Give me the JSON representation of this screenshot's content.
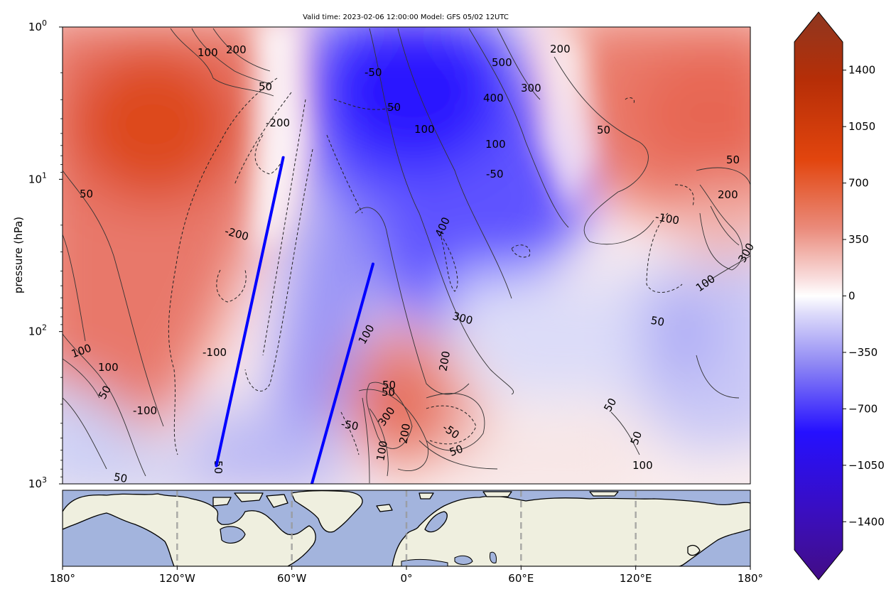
{
  "chart_data": [
    {
      "type": "heatmap",
      "title": "Valid time: 2023-02-06 12:00:00 Model: GFS 05/02 12UTC",
      "xlabel": "",
      "ylabel": "pressure (hPa)",
      "x_range": [
        "180°",
        "180°"
      ],
      "ylim": [
        1000,
        1
      ],
      "y_scale": "log",
      "y_ticks": [
        {
          "base": "10",
          "exp": "0"
        },
        {
          "base": "10",
          "exp": "1"
        },
        {
          "base": "10",
          "exp": "2"
        },
        {
          "base": "10",
          "exp": "3"
        }
      ],
      "grid": false,
      "contour_labels": [
        "100",
        "200",
        "50",
        "-200",
        "500",
        "-50",
        "50",
        "200",
        "400",
        "300",
        "100",
        "50",
        "100",
        "-50",
        "50",
        "50",
        "200",
        "-100",
        "300",
        "100",
        "50",
        "-200",
        "400",
        "300",
        "-100",
        "-50",
        "100",
        "200",
        "100",
        "100",
        "50",
        "300",
        "-50",
        "200",
        "-100",
        "50",
        "50",
        "100",
        "50",
        "50",
        "50",
        "100",
        "50",
        "50",
        "50",
        "50"
      ],
      "lines": [
        {
          "name": "",
          "color": "#0000ff",
          "from": [
            -99.5,
            760
          ],
          "to": [
            -64.5,
            7.2
          ]
        },
        {
          "name": "",
          "color": "#0000ff",
          "from": [
            -49.5,
            1000
          ],
          "to": [
            -17.5,
            36
          ]
        }
      ],
      "colors": {
        "positive_peak": "#dd4510",
        "negative_peak": "#3c18ff",
        "neutral": "#ffffff"
      }
    },
    {
      "type": "map",
      "x_ticks": [
        "180°",
        "120°W",
        "60°W",
        "0°",
        "60°E",
        "120°E",
        "180°"
      ],
      "x_values": [
        -180,
        -120,
        -60,
        0,
        60,
        120,
        180
      ],
      "gridlines": [
        -120,
        -60,
        0,
        60,
        120
      ],
      "colors": {
        "ocean": "#a3b4dd",
        "land": "#efefdf",
        "coast": "#000000"
      }
    },
    {
      "type": "colorbar",
      "tick_labels": [
        "1400",
        "1050",
        "700",
        "350",
        "0",
        "−350",
        "−700",
        "−1050",
        "−1400"
      ],
      "tick_values": [
        1400,
        1050,
        700,
        350,
        0,
        -350,
        -700,
        -1050,
        -1400
      ],
      "range": [
        -1575,
        1575
      ],
      "extend": "both"
    }
  ]
}
